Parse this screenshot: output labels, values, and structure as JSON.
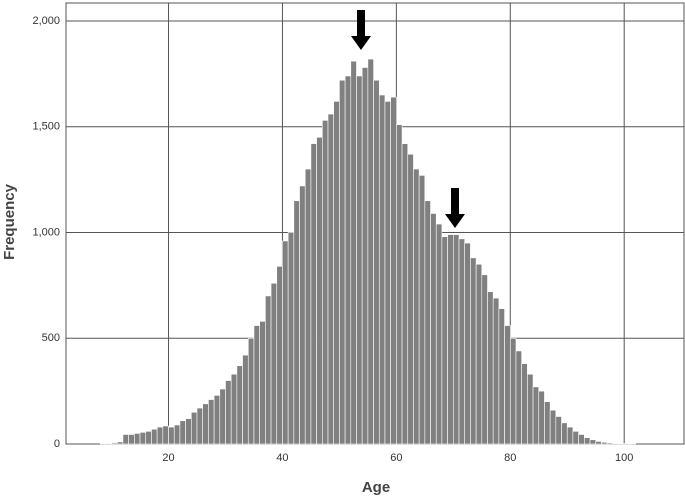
{
  "chart_data": {
    "type": "histogram",
    "x_label": "Age",
    "y_label": "Frequency",
    "bins": [
      8,
      9,
      10,
      11,
      12,
      13,
      14,
      15,
      16,
      17,
      18,
      19,
      20,
      21,
      22,
      23,
      24,
      25,
      26,
      27,
      28,
      29,
      30,
      31,
      32,
      33,
      34,
      35,
      36,
      37,
      38,
      39,
      40,
      41,
      42,
      43,
      44,
      45,
      46,
      47,
      48,
      49,
      50,
      51,
      52,
      53,
      54,
      55,
      56,
      57,
      58,
      59,
      60,
      61,
      62,
      63,
      64,
      65,
      66,
      67,
      68,
      69,
      70,
      71,
      72,
      73,
      74,
      75,
      76,
      77,
      78,
      79,
      80,
      81,
      82,
      83,
      84,
      85,
      86,
      87,
      88,
      89,
      90,
      91,
      92,
      93,
      94,
      95,
      96,
      97,
      98,
      99,
      100,
      101,
      102,
      103,
      104,
      105,
      106
    ],
    "values": [
      2,
      3,
      5,
      10,
      45,
      45,
      50,
      55,
      60,
      70,
      80,
      85,
      80,
      90,
      110,
      120,
      150,
      170,
      190,
      210,
      230,
      260,
      300,
      330,
      370,
      420,
      500,
      560,
      580,
      700,
      760,
      840,
      960,
      1000,
      1150,
      1220,
      1300,
      1420,
      1450,
      1530,
      1560,
      1620,
      1720,
      1740,
      1810,
      1740,
      1780,
      1820,
      1720,
      1650,
      1620,
      1640,
      1510,
      1420,
      1370,
      1300,
      1270,
      1150,
      1090,
      1040,
      980,
      990,
      990,
      970,
      950,
      880,
      850,
      800,
      720,
      690,
      640,
      560,
      500,
      440,
      380,
      330,
      270,
      250,
      200,
      160,
      130,
      100,
      80,
      60,
      45,
      30,
      20,
      12,
      8,
      5,
      3,
      2,
      1,
      1,
      0,
      0,
      0,
      0
    ],
    "color": "#808080",
    "xlim": [
      2,
      110.5
    ],
    "xticks": [
      20,
      40,
      60,
      80,
      100
    ],
    "ylim": [
      0,
      2085
    ],
    "yticks": [
      0,
      500,
      {
        "value": 1000,
        "label": "1,000"
      },
      {
        "value": 1500,
        "label": "1,500"
      },
      {
        "value": 2000,
        "label": "2,000"
      }
    ],
    "grid": true
  }
}
